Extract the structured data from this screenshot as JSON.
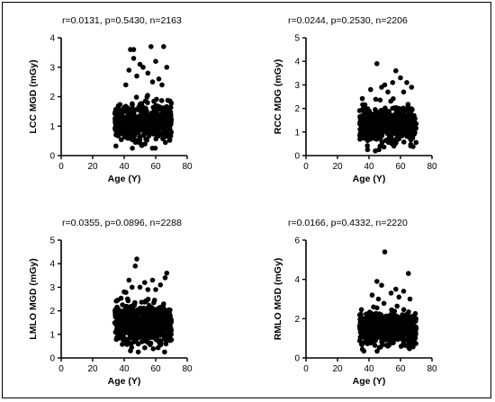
{
  "chart_data": [
    {
      "type": "scatter",
      "stats": "r=0.0131, p=0.5430, n=2163",
      "xlabel": "Age (Y)",
      "ylabel": "LCC MGD (mGy)",
      "xlim": [
        0,
        80
      ],
      "ylim": [
        0,
        4
      ],
      "xticks": [
        0,
        20,
        40,
        60,
        80
      ],
      "yticks": [
        0,
        1,
        2,
        3,
        4
      ],
      "cluster": {
        "x_range": [
          34,
          70
        ],
        "center": 1.15,
        "spread": 0.3,
        "count": 600
      },
      "outliers": [
        [
          44,
          3.6
        ],
        [
          46,
          3.6
        ],
        [
          57,
          3.7
        ],
        [
          65,
          3.7
        ],
        [
          46,
          3.3
        ],
        [
          50,
          3.1
        ],
        [
          52,
          3.0
        ],
        [
          60,
          3.2
        ],
        [
          67,
          3.0
        ],
        [
          43,
          2.9
        ],
        [
          55,
          2.8
        ],
        [
          62,
          2.6
        ],
        [
          48,
          2.7
        ],
        [
          58,
          2.5
        ],
        [
          41,
          2.4
        ],
        [
          64,
          2.4
        ]
      ]
    },
    {
      "type": "scatter",
      "stats": "r=0.0244, p=0.2530, n=2206",
      "xlabel": "Age (Y)",
      "ylabel": "RCC MDG (mGy)",
      "xlim": [
        0,
        80
      ],
      "ylim": [
        0,
        5
      ],
      "xticks": [
        0,
        20,
        40,
        60,
        80
      ],
      "yticks": [
        0,
        1,
        2,
        3,
        4,
        5
      ],
      "cluster": {
        "x_range": [
          34,
          70
        ],
        "center": 1.3,
        "spread": 0.35,
        "count": 600
      },
      "outliers": [
        [
          45,
          3.9
        ],
        [
          57,
          3.6
        ],
        [
          60,
          3.3
        ],
        [
          64,
          3.1
        ],
        [
          67,
          2.9
        ],
        [
          50,
          3.0
        ],
        [
          55,
          3.1
        ],
        [
          41,
          2.8
        ],
        [
          48,
          2.9
        ],
        [
          62,
          2.7
        ],
        [
          52,
          2.7
        ],
        [
          44,
          0.2
        ],
        [
          47,
          0.4
        ]
      ]
    },
    {
      "type": "scatter",
      "stats": "r=0.0355, p=0.0896, n=2288",
      "xlabel": "Age (Y)",
      "ylabel": "LMLO MGD (mGy)",
      "xlim": [
        0,
        80
      ],
      "ylim": [
        0,
        5
      ],
      "xticks": [
        0,
        20,
        40,
        60,
        80
      ],
      "yticks": [
        0,
        1,
        2,
        3,
        4,
        5
      ],
      "cluster": {
        "x_range": [
          34,
          70
        ],
        "center": 1.5,
        "spread": 0.4,
        "count": 650
      },
      "outliers": [
        [
          48,
          4.2
        ],
        [
          47,
          3.9
        ],
        [
          67,
          3.6
        ],
        [
          66,
          3.4
        ],
        [
          58,
          3.3
        ],
        [
          53,
          3.2
        ],
        [
          43,
          3.3
        ],
        [
          63,
          3.1
        ],
        [
          45,
          3.0
        ],
        [
          55,
          2.9
        ],
        [
          40,
          2.8
        ],
        [
          60,
          2.9
        ],
        [
          50,
          3.0
        ],
        [
          44,
          0.3
        ]
      ]
    },
    {
      "type": "scatter",
      "stats": "r=0.0166, p=0.4332, n=2220",
      "xlabel": "Age (Y)",
      "ylabel": "RMLO MGD (mGy)",
      "xlim": [
        0,
        80
      ],
      "ylim": [
        0,
        6
      ],
      "xticks": [
        0,
        20,
        40,
        60,
        80
      ],
      "yticks": [
        0,
        2,
        4,
        6
      ],
      "cluster": {
        "x_range": [
          34,
          70
        ],
        "center": 1.5,
        "spread": 0.4,
        "count": 650
      },
      "outliers": [
        [
          50,
          5.4
        ],
        [
          65,
          4.3
        ],
        [
          45,
          3.9
        ],
        [
          48,
          3.7
        ],
        [
          57,
          3.5
        ],
        [
          62,
          3.4
        ],
        [
          42,
          3.2
        ],
        [
          54,
          3.3
        ],
        [
          66,
          3.0
        ],
        [
          59,
          3.1
        ],
        [
          46,
          3.0
        ],
        [
          52,
          0.6
        ]
      ]
    }
  ]
}
